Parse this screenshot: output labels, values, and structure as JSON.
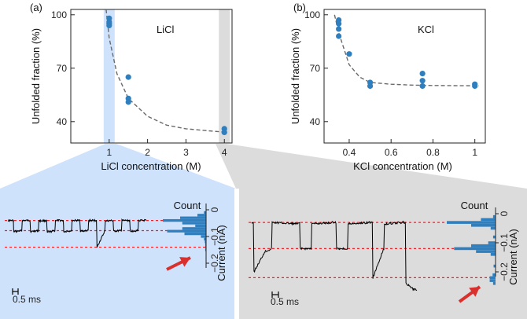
{
  "colors": {
    "point": "#2f7fbf",
    "fit": "#6a6a6a",
    "li_band": "#cfe2fb",
    "k_band": "#dcdcdc",
    "li_panel_bg": "#cfe2fb",
    "k_panel_bg": "#dcdcdc",
    "trace": "#000000",
    "level_line": "#e0282f",
    "arrow": "#d9302e",
    "hist": "#2f7fbf"
  },
  "chart_data": [
    {
      "type": "scatter",
      "panel_label": "(a)",
      "annotation": "LiCl",
      "xlabel": "LiCl concentration (M)",
      "ylabel": "Unfolded fraction (%)",
      "xlim": [
        0,
        4.2
      ],
      "ylim": [
        28,
        103
      ],
      "xticks": [
        1,
        2,
        3,
        4
      ],
      "yticks": [
        40,
        70,
        100
      ],
      "x": [
        1,
        1,
        1,
        1,
        1.5,
        1.5,
        1.5,
        4,
        4
      ],
      "y": [
        98,
        96,
        95,
        94,
        65,
        53,
        51,
        36,
        34
      ],
      "fit": {
        "x": [
          0.92,
          1.0,
          1.2,
          1.5,
          2.0,
          2.5,
          3.0,
          3.5,
          4.05
        ],
        "y": [
          103,
          87,
          67,
          53,
          43,
          38,
          36,
          35,
          34
        ]
      },
      "highlight_x": [
        1,
        4
      ]
    },
    {
      "type": "scatter",
      "panel_label": "(b)",
      "annotation": "KCl",
      "xlabel": "KCl concentration (M)",
      "ylabel": "Unfolded fraction (%)",
      "xlim": [
        0.28,
        1.05
      ],
      "ylim": [
        28,
        103
      ],
      "xticks": [
        0.4,
        0.6,
        0.8,
        1.0
      ],
      "yticks": [
        40,
        70,
        100
      ],
      "x": [
        0.35,
        0.35,
        0.35,
        0.35,
        0.4,
        0.5,
        0.5,
        0.75,
        0.75,
        0.75,
        1.0,
        1.0
      ],
      "y": [
        97,
        95,
        92,
        88,
        78,
        62,
        60,
        67,
        63,
        60,
        61,
        60
      ],
      "fit": {
        "x": [
          0.33,
          0.35,
          0.4,
          0.45,
          0.5,
          0.6,
          0.7,
          0.8,
          0.9,
          1.02
        ],
        "y": [
          100,
          90,
          72,
          65,
          62,
          61,
          60.5,
          60.3,
          60.2,
          60.1
        ]
      }
    },
    {
      "type": "line",
      "panel": "LiCl current trace",
      "scale_bar_label": "0.5 ms",
      "hist_title": "Count",
      "ylabel": "Current (nA)",
      "yticks": [
        "0",
        "−0.1",
        "−0.2"
      ],
      "levels_nA": [
        -0.04,
        -0.078,
        -0.14
      ],
      "time_ms": [
        0,
        0.2,
        0.21,
        0.5,
        0.52,
        0.8,
        0.82,
        1.1,
        1.12,
        1.4,
        1.42,
        1.7,
        1.72,
        2.0,
        2.02,
        2.3,
        2.32,
        2.6,
        2.62,
        2.9,
        2.92,
        3.2,
        3.22,
        3.5,
        3.52,
        3.8,
        3.82,
        4.1,
        4.12,
        4.4,
        4.42,
        4.7,
        4.72,
        5.0
      ],
      "current_nA": [
        -0.04,
        -0.04,
        -0.082,
        -0.078,
        -0.04,
        -0.04,
        -0.082,
        -0.078,
        -0.042,
        -0.04,
        -0.085,
        -0.078,
        -0.04,
        -0.04,
        -0.082,
        -0.078,
        -0.04,
        -0.04,
        -0.08,
        -0.078,
        -0.04,
        -0.04,
        -0.14,
        -0.08,
        -0.042,
        -0.04,
        -0.08,
        -0.078,
        -0.04,
        -0.04,
        -0.08,
        -0.078,
        -0.04,
        -0.04
      ],
      "histogram": {
        "bin_centers_nA": [
          -0.01,
          -0.02,
          -0.03,
          -0.04,
          -0.05,
          -0.06,
          -0.07,
          -0.08,
          -0.09,
          -0.1,
          -0.11,
          -0.12,
          -0.13,
          -0.14,
          -0.15
        ],
        "counts": [
          0.05,
          0.2,
          0.6,
          1.0,
          0.55,
          0.25,
          0.55,
          0.9,
          0.5,
          0.12,
          0.05,
          0.03,
          0.02,
          0.02,
          0.02
        ]
      }
    },
    {
      "type": "line",
      "panel": "KCl current trace",
      "scale_bar_label": "0.5 ms",
      "hist_title": "Count",
      "ylabel": "Current (nA)",
      "yticks": [
        "0",
        "−0.1",
        "−0.2"
      ],
      "levels_nA": [
        -0.03,
        -0.12,
        -0.22
      ],
      "time_ms": [
        0,
        0.05,
        0.07,
        0.4,
        0.6,
        0.62,
        1.4,
        1.45,
        1.47,
        1.8,
        1.82,
        2.5,
        2.55,
        2.57,
        2.9,
        2.92,
        3.6,
        3.65,
        3.67,
        4.0,
        4.02,
        4.6,
        4.65,
        4.67,
        4.9,
        5.0
      ],
      "current_nA": [
        -0.03,
        -0.03,
        -0.2,
        -0.13,
        -0.12,
        -0.03,
        -0.035,
        -0.03,
        -0.12,
        -0.12,
        -0.035,
        -0.03,
        -0.03,
        -0.12,
        -0.12,
        -0.035,
        -0.03,
        -0.03,
        -0.22,
        -0.12,
        -0.035,
        -0.03,
        -0.03,
        -0.24,
        -0.26,
        -0.26
      ],
      "histogram": {
        "bin_centers_nA": [
          -0.01,
          -0.02,
          -0.03,
          -0.04,
          -0.05,
          -0.08,
          -0.1,
          -0.11,
          -0.12,
          -0.13,
          -0.14,
          -0.18,
          -0.21,
          -0.22,
          -0.23,
          -0.24
        ],
        "counts": [
          0.05,
          0.3,
          1.0,
          0.5,
          0.1,
          0.05,
          0.15,
          0.5,
          0.85,
          0.4,
          0.1,
          0.04,
          0.06,
          0.12,
          0.12,
          0.05
        ]
      }
    }
  ]
}
